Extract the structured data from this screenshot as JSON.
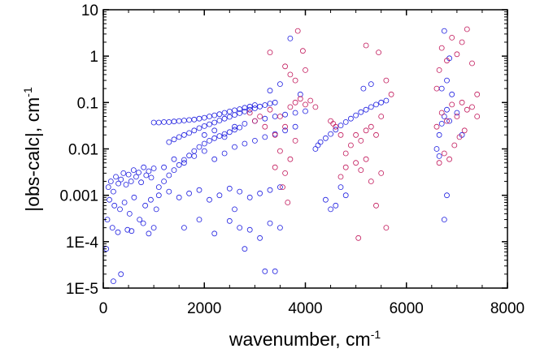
{
  "chart_data": {
    "type": "scatter",
    "title": "",
    "xlabel": "wavenumber, cm",
    "xlabel_sup": "-1",
    "ylabel": "|obs-calc|, cm",
    "ylabel_sup": "-1",
    "xlim": [
      0,
      8000
    ],
    "ylim": [
      1e-05,
      10
    ],
    "y_scale": "log",
    "grid": false,
    "legend": "none",
    "x_ticks": [
      {
        "value": 0,
        "label": "0"
      },
      {
        "value": 2000,
        "label": "2000"
      },
      {
        "value": 4000,
        "label": "4000"
      },
      {
        "value": 6000,
        "label": "6000"
      },
      {
        "value": 8000,
        "label": "8000"
      }
    ],
    "y_ticks": [
      {
        "value": 1e-05,
        "label": "1E-5"
      },
      {
        "value": 0.0001,
        "label": "1E-4"
      },
      {
        "value": 0.001,
        "label": "0.001"
      },
      {
        "value": 0.01,
        "label": "0.01"
      },
      {
        "value": 0.1,
        "label": "0.1"
      },
      {
        "value": 1,
        "label": "1"
      },
      {
        "value": 10,
        "label": "10"
      }
    ],
    "series": [
      {
        "color": "#1f1fe0",
        "marker": "open-circle",
        "points": [
          [
            100,
            0.0015
          ],
          [
            150,
            0.002
          ],
          [
            200,
            0.0012
          ],
          [
            250,
            0.0025
          ],
          [
            300,
            0.0018
          ],
          [
            350,
            0.0022
          ],
          [
            400,
            0.003
          ],
          [
            450,
            0.0017
          ],
          [
            500,
            0.0028
          ],
          [
            550,
            0.002
          ],
          [
            600,
            0.0035
          ],
          [
            650,
            0.0025
          ],
          [
            700,
            0.0031
          ],
          [
            750,
            0.0019
          ],
          [
            800,
            0.004
          ],
          [
            850,
            0.0027
          ],
          [
            900,
            0.0033
          ],
          [
            950,
            0.0024
          ],
          [
            1000,
            0.0038
          ],
          [
            120,
            0.0008
          ],
          [
            220,
            0.0006
          ],
          [
            330,
            0.0005
          ],
          [
            420,
            0.0007
          ],
          [
            520,
            0.0004
          ],
          [
            610,
            0.0009
          ],
          [
            720,
            0.0003
          ],
          [
            830,
            0.0006
          ],
          [
            940,
            0.0008
          ],
          [
            1050,
            0.0005
          ],
          [
            80,
            0.0003
          ],
          [
            180,
            0.0002
          ],
          [
            290,
            0.00016
          ],
          [
            480,
            0.00018
          ],
          [
            560,
            0.00017
          ],
          [
            790,
            0.00025
          ],
          [
            900,
            0.00015
          ],
          [
            1000,
            0.0002
          ],
          [
            60,
            7e-05
          ],
          [
            200,
            1.4e-05
          ],
          [
            350,
            2e-05
          ],
          [
            1000,
            0.037
          ],
          [
            1100,
            0.037
          ],
          [
            1200,
            0.038
          ],
          [
            1300,
            0.038
          ],
          [
            1400,
            0.039
          ],
          [
            1500,
            0.04
          ],
          [
            1600,
            0.041
          ],
          [
            1700,
            0.042
          ],
          [
            1800,
            0.043
          ],
          [
            1900,
            0.045
          ],
          [
            2000,
            0.047
          ],
          [
            2100,
            0.05
          ],
          [
            2200,
            0.053
          ],
          [
            2300,
            0.056
          ],
          [
            2400,
            0.06
          ],
          [
            2500,
            0.064
          ],
          [
            2600,
            0.068
          ],
          [
            2700,
            0.072
          ],
          [
            2800,
            0.077
          ],
          [
            2900,
            0.082
          ],
          [
            3000,
            0.088
          ],
          [
            1300,
            0.014
          ],
          [
            1400,
            0.016
          ],
          [
            1500,
            0.018
          ],
          [
            1600,
            0.02
          ],
          [
            1700,
            0.022
          ],
          [
            1800,
            0.025
          ],
          [
            1900,
            0.028
          ],
          [
            2000,
            0.031
          ],
          [
            2100,
            0.034
          ],
          [
            2200,
            0.037
          ],
          [
            2300,
            0.041
          ],
          [
            2400,
            0.045
          ],
          [
            2500,
            0.049
          ],
          [
            2600,
            0.054
          ],
          [
            2700,
            0.059
          ],
          [
            2800,
            0.064
          ],
          [
            2900,
            0.07
          ],
          [
            3000,
            0.075
          ],
          [
            3100,
            0.082
          ],
          [
            3200,
            0.088
          ],
          [
            3300,
            0.095
          ],
          [
            3400,
            0.1
          ],
          [
            1100,
            0.0015
          ],
          [
            1200,
            0.002
          ],
          [
            1300,
            0.0027
          ],
          [
            1400,
            0.0035
          ],
          [
            1500,
            0.0045
          ],
          [
            1600,
            0.0058
          ],
          [
            1700,
            0.0072
          ],
          [
            1800,
            0.009
          ],
          [
            1900,
            0.011
          ],
          [
            2000,
            0.013
          ],
          [
            2100,
            0.015
          ],
          [
            2200,
            0.017
          ],
          [
            2300,
            0.019
          ],
          [
            2400,
            0.021
          ],
          [
            2500,
            0.023
          ],
          [
            2600,
            0.026
          ],
          [
            2700,
            0.029
          ],
          [
            1200,
            0.004
          ],
          [
            1400,
            0.006
          ],
          [
            1600,
            0.005
          ],
          [
            1800,
            0.007
          ],
          [
            2000,
            0.009
          ],
          [
            2200,
            0.006
          ],
          [
            2400,
            0.008
          ],
          [
            2600,
            0.011
          ],
          [
            2800,
            0.013
          ],
          [
            3000,
            0.015
          ],
          [
            3200,
            0.018
          ],
          [
            3400,
            0.021
          ],
          [
            3600,
            0.025
          ],
          [
            3800,
            0.03
          ],
          [
            1100,
            0.001
          ],
          [
            1300,
            0.0012
          ],
          [
            1500,
            0.0009
          ],
          [
            1700,
            0.0011
          ],
          [
            1900,
            0.0013
          ],
          [
            2100,
            0.0008
          ],
          [
            2300,
            0.001
          ],
          [
            2500,
            0.0014
          ],
          [
            2700,
            0.0012
          ],
          [
            2900,
            0.0009
          ],
          [
            3100,
            0.0011
          ],
          [
            3300,
            0.0013
          ],
          [
            3500,
            0.0015
          ],
          [
            1600,
            0.0002
          ],
          [
            1900,
            0.0003
          ],
          [
            2200,
            0.00015
          ],
          [
            2500,
            0.00028
          ],
          [
            2700,
            0.0002
          ],
          [
            2900,
            0.00018
          ],
          [
            3100,
            0.00012
          ],
          [
            3300,
            0.00025
          ],
          [
            3500,
            0.0002
          ],
          [
            2800,
            7e-05
          ],
          [
            3200,
            2.3e-05
          ],
          [
            3400,
            2.3e-05
          ],
          [
            2600,
            0.0005
          ],
          [
            2000,
            0.02
          ],
          [
            2200,
            0.025
          ],
          [
            2400,
            0.018
          ],
          [
            2600,
            0.03
          ],
          [
            2800,
            0.035
          ],
          [
            3000,
            0.04
          ],
          [
            3200,
            0.045
          ],
          [
            3400,
            0.05
          ],
          [
            3600,
            0.055
          ],
          [
            3800,
            0.06
          ],
          [
            4000,
            0.065
          ],
          [
            3500,
            0.25
          ],
          [
            3700,
            2.4
          ],
          [
            3300,
            0.18
          ],
          [
            3900,
            0.15
          ],
          [
            4200,
            0.01
          ],
          [
            4250,
            0.012
          ],
          [
            4300,
            0.014
          ],
          [
            4400,
            0.017
          ],
          [
            4500,
            0.021
          ],
          [
            4600,
            0.026
          ],
          [
            4700,
            0.032
          ],
          [
            4800,
            0.038
          ],
          [
            4900,
            0.045
          ],
          [
            5000,
            0.053
          ],
          [
            5100,
            0.062
          ],
          [
            5200,
            0.07
          ],
          [
            5300,
            0.08
          ],
          [
            5400,
            0.09
          ],
          [
            5500,
            0.1
          ],
          [
            5600,
            0.11
          ],
          [
            4400,
            0.0008
          ],
          [
            4500,
            0.0005
          ],
          [
            4600,
            0.0006
          ],
          [
            4700,
            0.0015
          ],
          [
            4800,
            0.001
          ],
          [
            5300,
            0.25
          ],
          [
            5150,
            0.2
          ],
          [
            6600,
            0.01
          ],
          [
            6650,
            0.02
          ],
          [
            6700,
            0.035
          ],
          [
            6750,
            0.05
          ],
          [
            6800,
            0.07
          ],
          [
            6850,
            0.04
          ],
          [
            6700,
            0.2
          ],
          [
            6800,
            0.3
          ],
          [
            6750,
            3.5
          ],
          [
            6800,
            0.001
          ],
          [
            6750,
            0.0003
          ],
          [
            6850,
            0.9
          ],
          [
            6900,
            0.15
          ],
          [
            6650,
            0.007
          ],
          [
            7000,
            0.06
          ],
          [
            7100,
            0.02
          ]
        ]
      },
      {
        "color": "#c2185b",
        "marker": "open-circle",
        "points": [
          [
            2900,
            0.06
          ],
          [
            3000,
            0.04
          ],
          [
            3100,
            0.05
          ],
          [
            3200,
            0.03
          ],
          [
            3300,
            0.07
          ],
          [
            3400,
            0.02
          ],
          [
            3500,
            0.05
          ],
          [
            3600,
            0.03
          ],
          [
            3700,
            0.08
          ],
          [
            3800,
            0.1
          ],
          [
            3900,
            0.12
          ],
          [
            4000,
            0.09
          ],
          [
            4100,
            0.11
          ],
          [
            4200,
            0.08
          ],
          [
            3300,
            1.2
          ],
          [
            3600,
            0.6
          ],
          [
            3800,
            0.3
          ],
          [
            3950,
            1.3
          ],
          [
            4000,
            0.5
          ],
          [
            3850,
            3.5
          ],
          [
            3700,
            0.4
          ],
          [
            3500,
            0.009
          ],
          [
            3400,
            0.004
          ],
          [
            3600,
            0.003
          ],
          [
            3700,
            0.006
          ],
          [
            3800,
            0.015
          ],
          [
            3550,
            0.0015
          ],
          [
            3650,
            0.0007
          ],
          [
            4500,
            0.04
          ],
          [
            4550,
            0.035
          ],
          [
            4600,
            0.03
          ],
          [
            4700,
            0.02
          ],
          [
            4800,
            0.008
          ],
          [
            4900,
            0.012
          ],
          [
            5000,
            0.02
          ],
          [
            5100,
            0.015
          ],
          [
            5200,
            0.025
          ],
          [
            5300,
            0.03
          ],
          [
            5400,
            0.02
          ],
          [
            5500,
            0.05
          ],
          [
            4700,
            0.0025
          ],
          [
            4800,
            0.004
          ],
          [
            5000,
            0.005
          ],
          [
            5100,
            0.0035
          ],
          [
            5200,
            0.006
          ],
          [
            5300,
            0.002
          ],
          [
            5400,
            0.0006
          ],
          [
            5500,
            0.003
          ],
          [
            5050,
            0.00012
          ],
          [
            5600,
            0.0002
          ],
          [
            5200,
            1.7
          ],
          [
            5450,
            1.2
          ],
          [
            5600,
            0.3
          ],
          [
            5700,
            0.15
          ],
          [
            6600,
            0.2
          ],
          [
            6650,
            0.5
          ],
          [
            6700,
            1.5
          ],
          [
            6800,
            0.8
          ],
          [
            6900,
            2.5
          ],
          [
            7000,
            1.1
          ],
          [
            7100,
            2.0
          ],
          [
            7200,
            3.8
          ],
          [
            7300,
            0.7
          ],
          [
            7400,
            0.15
          ],
          [
            6600,
            0.03
          ],
          [
            6700,
            0.06
          ],
          [
            6800,
            0.04
          ],
          [
            6900,
            0.09
          ],
          [
            7000,
            0.05
          ],
          [
            7100,
            0.1
          ],
          [
            7200,
            0.07
          ],
          [
            7300,
            0.08
          ],
          [
            7400,
            0.05
          ],
          [
            6650,
            0.005
          ],
          [
            6750,
            0.008
          ],
          [
            6850,
            0.006
          ],
          [
            6950,
            0.012
          ],
          [
            7050,
            0.018
          ],
          [
            7150,
            0.025
          ]
        ]
      }
    ]
  }
}
